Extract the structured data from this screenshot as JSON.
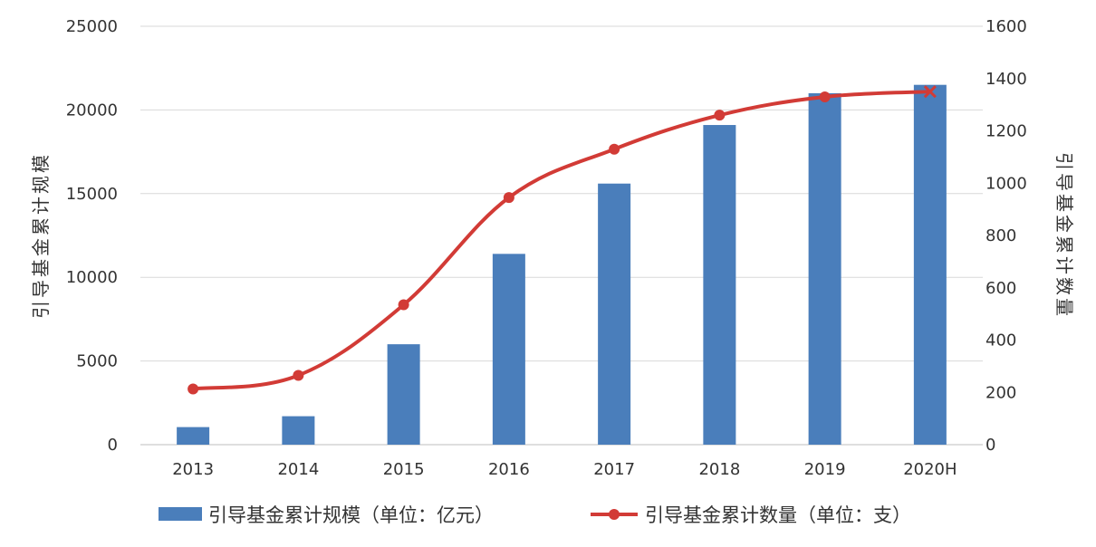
{
  "chart_data": {
    "type": "bar+line",
    "categories": [
      "2013",
      "2014",
      "2015",
      "2016",
      "2017",
      "2018",
      "2019",
      "2020H"
    ],
    "series": [
      {
        "name": "引导基金累计规模（单位：亿元）",
        "type": "bar",
        "axis": "left",
        "color": "#4a7ebb",
        "values": [
          1050,
          1700,
          6000,
          11400,
          15600,
          19100,
          21000,
          21500
        ]
      },
      {
        "name": "引导基金累计数量（单位：支）",
        "type": "line",
        "axis": "right",
        "color": "#d23b36",
        "values": [
          213,
          265,
          535,
          945,
          1130,
          1260,
          1330,
          1350
        ]
      }
    ],
    "left_axis": {
      "label": "引导基金累计规模",
      "range": [
        0,
        25000
      ],
      "ticks": [
        "0",
        "5000",
        "10000",
        "15000",
        "20000",
        "25000"
      ]
    },
    "right_axis": {
      "label": "引导基金累计数量",
      "range": [
        0,
        1600
      ],
      "ticks": [
        "0",
        "200",
        "400",
        "600",
        "800",
        "1000",
        "1200",
        "1400",
        "1600"
      ]
    },
    "grid": true,
    "legend": "bottom"
  }
}
